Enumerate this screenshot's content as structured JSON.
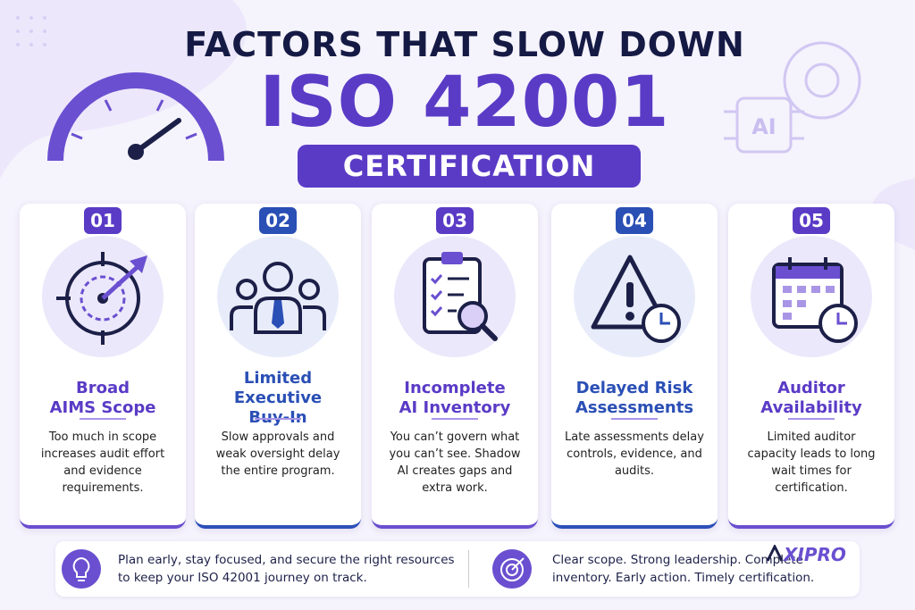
{
  "header": {
    "line1": "FACTORS THAT SLOW DOWN",
    "line2": "ISO 42001",
    "line3": "CERTIFICATION"
  },
  "cards": [
    {
      "number": "01",
      "title": "Broad\nAIMS Scope",
      "description": "Too much in scope increases audit effort and evidence requirements."
    },
    {
      "number": "02",
      "title": "Limited\nExecutive\nBuy-In",
      "description": "Slow approvals and weak oversight delay the entire program."
    },
    {
      "number": "03",
      "title": "Incomplete\nAI Inventory",
      "description": "You can’t govern what you can’t see. Shadow AI creates gaps and extra work."
    },
    {
      "number": "04",
      "title": "Delayed Risk\nAssessments",
      "description": "Late assessments delay controls, evidence, and audits."
    },
    {
      "number": "05",
      "title": "Auditor\nAvailability",
      "description": "Limited auditor capacity leads to long wait times for certification."
    }
  ],
  "footer": {
    "left": "Plan early, stay focused, and secure the right resources to keep your ISO 42001 journey on track.",
    "right": "Clear scope. Strong leadership. Complete inventory. Early action. Timely certification.",
    "logo": "XIPRO"
  }
}
